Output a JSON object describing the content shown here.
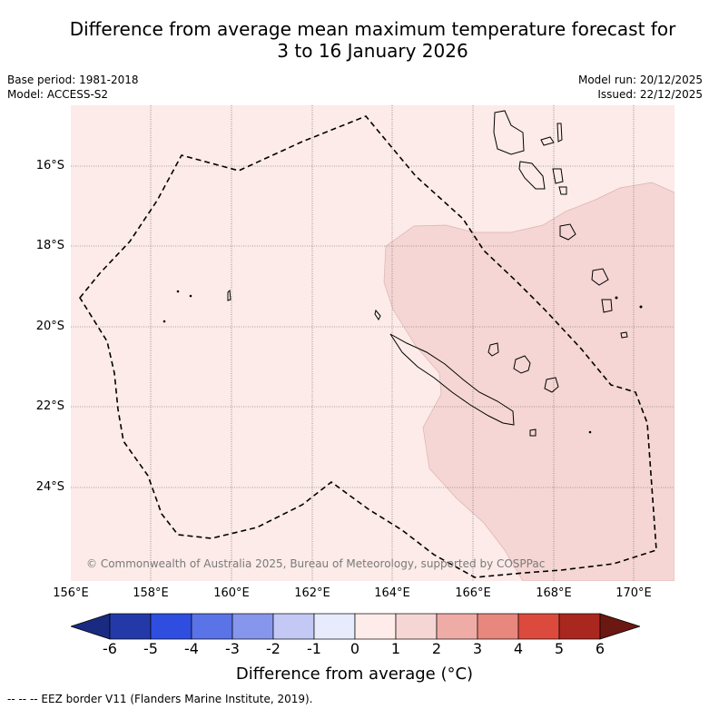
{
  "title": {
    "line1": "Difference from average mean maximum temperature forecast for",
    "line2": "3 to 16 January 2026"
  },
  "meta": {
    "base_period": "Base period: 1981-2018",
    "model": "Model: ACCESS-S2",
    "model_run": "Model run: 20/12/2025",
    "issued": "Issued: 22/12/2025"
  },
  "map": {
    "lat_labels": [
      "16°S",
      "18°S",
      "20°S",
      "22°S",
      "24°S"
    ],
    "lon_labels": [
      "156°E",
      "158°E",
      "160°E",
      "162°E",
      "164°E",
      "166°E",
      "168°E",
      "170°E"
    ],
    "copyright": "© Commonwealth of Australia 2025, Bureau of Meteorology, supported by COSPPac",
    "colors": {
      "anomaly_0_1": "#fcebe8",
      "anomaly_1_2": "#f5d6d4",
      "coastline": "#000000",
      "eez_border": "#000000",
      "grid": "#555555"
    }
  },
  "colorbar": {
    "ticks": [
      "-6",
      "-5",
      "-4",
      "-3",
      "-2",
      "-1",
      "0",
      "1",
      "2",
      "3",
      "4",
      "5",
      "6"
    ],
    "colors": [
      "#1a2a80",
      "#2439a8",
      "#2f4ee0",
      "#5a73e6",
      "#8596ec",
      "#c3c9f4",
      "#e8ebfb",
      "#fdecea",
      "#f6d6d4",
      "#efaca7",
      "#e8877d",
      "#dc4a3d",
      "#a9271f",
      "#6b1712"
    ],
    "label": "Difference from average (°C)"
  },
  "footer": "--  --  -- EEZ border V11 (Flanders Marine Institute, 2019)."
}
